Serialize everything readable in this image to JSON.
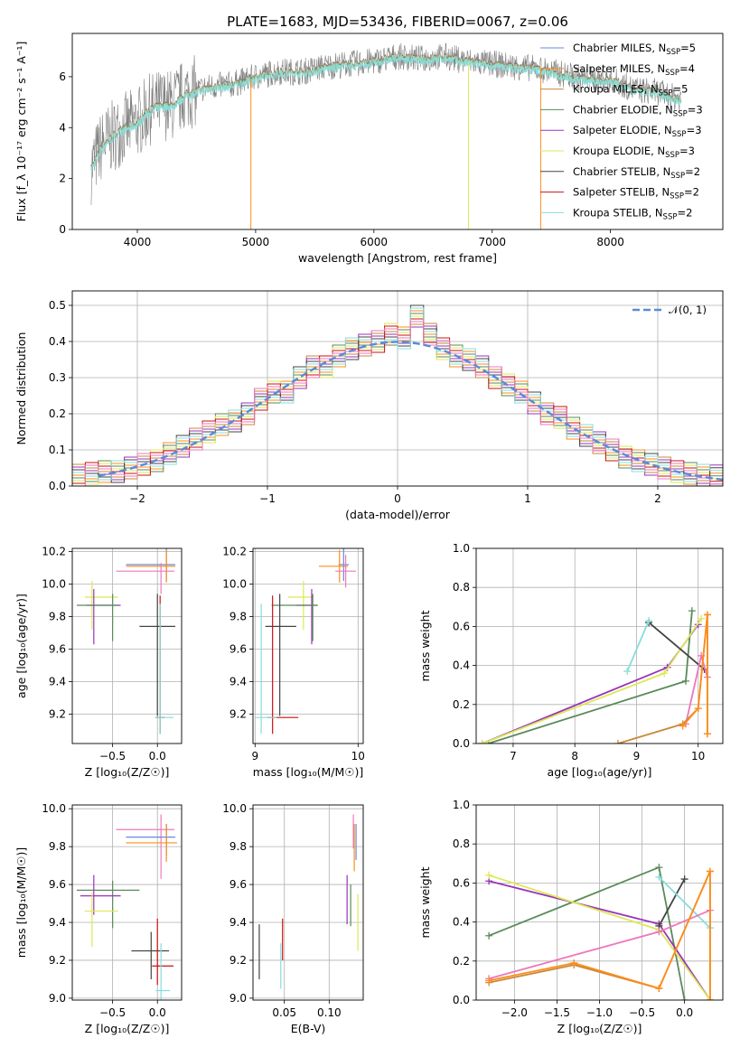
{
  "figure_title": "PLATE=1683, MJD=53436, FIBERID=0067, z=0.06",
  "colors": {
    "Chabrier MILES": "#6688dd",
    "Salpeter MILES": "#ff8c1a",
    "Kroupa MILES": "#c88a3a",
    "Chabrier ELODIE": "#5a8a5a",
    "Salpeter ELODIE": "#9933bb",
    "Kroupa ELODIE": "#dde855",
    "Chabrier STELIB": "#444444",
    "Salpeter STELIB": "#cc1111",
    "Kroupa STELIB": "#88dddd",
    "Pink": "#ee77bb",
    "Data": "#7f7f7f"
  },
  "chart_data": [
    {
      "id": "spectrum",
      "type": "line",
      "title": "PLATE=1683, MJD=53436, FIBERID=0067, z=0.06",
      "xlabel": "wavelength [Angstrom, rest frame]",
      "ylabel": "Flux [f_λ 10⁻¹⁷ erg cm⁻² s⁻¹ A⁻¹]",
      "xlim": [
        3450,
        8950
      ],
      "ylim": [
        0,
        7.7
      ],
      "xticks": [
        "4000",
        "5000",
        "6000",
        "7000",
        "8000"
      ],
      "yticks": [
        "0",
        "2",
        "4",
        "6"
      ],
      "grid": false,
      "legend_position": "right",
      "legend": [
        {
          "label": "Chabrier MILES, N",
          "sub": "SSP",
          "suffix": "=5"
        },
        {
          "label": "Salpeter MILES, N",
          "sub": "SSP",
          "suffix": "=4"
        },
        {
          "label": "Kroupa MILES, N",
          "sub": "SSP",
          "suffix": "=5"
        },
        {
          "label": "Chabrier ELODIE, N",
          "sub": "SSP",
          "suffix": "=3"
        },
        {
          "label": "Salpeter ELODIE, N",
          "sub": "SSP",
          "suffix": "=3"
        },
        {
          "label": "Kroupa ELODIE, N",
          "sub": "SSP",
          "suffix": "=3"
        },
        {
          "label": "Chabrier STELIB, N",
          "sub": "SSP",
          "suffix": "=2"
        },
        {
          "label": "Salpeter STELIB, N",
          "sub": "SSP",
          "suffix": "=2"
        },
        {
          "label": "Kroupa STELIB, N",
          "sub": "SSP",
          "suffix": "=2"
        }
      ],
      "continuum": [
        [
          3600,
          2.3
        ],
        [
          3700,
          3.3
        ],
        [
          3800,
          3.7
        ],
        [
          3900,
          4.0
        ],
        [
          4000,
          4.2
        ],
        [
          4100,
          4.7
        ],
        [
          4200,
          4.9
        ],
        [
          4300,
          4.9
        ],
        [
          4400,
          5.3
        ],
        [
          4600,
          5.6
        ],
        [
          4800,
          5.7
        ],
        [
          5000,
          6.0
        ],
        [
          5200,
          6.2
        ],
        [
          5400,
          6.2
        ],
        [
          5600,
          6.4
        ],
        [
          5800,
          6.5
        ],
        [
          6000,
          6.6
        ],
        [
          6200,
          6.8
        ],
        [
          6400,
          6.7
        ],
        [
          6600,
          6.8
        ],
        [
          6800,
          6.6
        ],
        [
          7000,
          6.5
        ],
        [
          7200,
          6.4
        ],
        [
          7400,
          6.3
        ],
        [
          7600,
          6.1
        ],
        [
          7800,
          5.9
        ],
        [
          8000,
          5.9
        ],
        [
          8200,
          5.5
        ],
        [
          8400,
          5.4
        ],
        [
          8600,
          5.1
        ]
      ]
    },
    {
      "id": "residuals",
      "type": "histogram",
      "xlabel": "(data-model)/error",
      "ylabel": "Normed distribution",
      "xlim": [
        -2.5,
        2.5
      ],
      "ylim": [
        0,
        0.54
      ],
      "xticks": [
        "−2",
        "−1",
        "0",
        "1",
        "2"
      ],
      "yticks": [
        "0.0",
        "0.1",
        "0.2",
        "0.3",
        "0.4",
        "0.5"
      ],
      "grid": true,
      "legend_position": "top-right",
      "legend": "𝒩(0, 1)",
      "bin_width": 0.1,
      "bin_centers": [
        -2.45,
        -2.35,
        -2.25,
        -2.15,
        -2.05,
        -1.95,
        -1.85,
        -1.75,
        -1.65,
        -1.55,
        -1.45,
        -1.35,
        -1.25,
        -1.15,
        -1.05,
        -0.95,
        -0.85,
        -0.75,
        -0.65,
        -0.55,
        -0.45,
        -0.35,
        -0.25,
        -0.15,
        -0.05,
        0.05,
        0.15,
        0.25,
        0.35,
        0.45,
        0.55,
        0.65,
        0.75,
        0.85,
        0.95,
        1.05,
        1.15,
        1.25,
        1.35,
        1.45,
        1.55,
        1.65,
        1.75,
        1.85,
        1.95,
        2.05,
        2.15,
        2.25,
        2.35,
        2.45
      ],
      "values": [
        0.03,
        0.035,
        0.04,
        0.04,
        0.05,
        0.06,
        0.07,
        0.09,
        0.11,
        0.13,
        0.15,
        0.17,
        0.18,
        0.2,
        0.24,
        0.26,
        0.26,
        0.3,
        0.33,
        0.33,
        0.36,
        0.38,
        0.39,
        0.4,
        0.42,
        0.41,
        0.47,
        0.42,
        0.38,
        0.36,
        0.35,
        0.33,
        0.3,
        0.28,
        0.26,
        0.23,
        0.2,
        0.19,
        0.16,
        0.14,
        0.12,
        0.1,
        0.08,
        0.07,
        0.06,
        0.05,
        0.04,
        0.035,
        0.03,
        0.028
      ],
      "gaussian": {
        "mu": 0,
        "sigma": 1
      }
    },
    {
      "id": "age-vs-Z",
      "type": "scatter",
      "xlabel": "Z [log₁₀(Z/Z☉)]",
      "ylabel": "age  [log₁₀(age/yr)]",
      "xlim": [
        -0.95,
        0.27
      ],
      "ylim": [
        9.02,
        10.22
      ],
      "xticks": [
        "−0.5",
        "0.0"
      ],
      "yticks": [
        "9.2",
        "9.4",
        "9.6",
        "9.8",
        "10.0",
        "10.2"
      ],
      "grid": true,
      "points": [
        {
          "series": "Chabrier MILES",
          "x": 0.1,
          "xerr": [
            0.45,
            0.1
          ],
          "y": 10.12,
          "yerr": [
            0.1,
            0.1
          ]
        },
        {
          "series": "Salpeter MILES",
          "x": 0.1,
          "xerr": [
            0.45,
            0.1
          ],
          "y": 10.11,
          "yerr": [
            0.1,
            0.1
          ]
        },
        {
          "series": "Pink",
          "x": 0.04,
          "xerr": [
            0.5,
            0.15
          ],
          "y": 10.08,
          "yerr": [
            0.14,
            0.05
          ]
        },
        {
          "series": "Kroupa ELODIE",
          "x": -0.73,
          "xerr": [
            0.08,
            0.29
          ],
          "y": 9.92,
          "yerr": [
            0.2,
            0.1
          ]
        },
        {
          "series": "Salpeter ELODIE",
          "x": -0.71,
          "xerr": [
            0.08,
            0.3
          ],
          "y": 9.87,
          "yerr": [
            0.24,
            0.1
          ]
        },
        {
          "series": "Chabrier ELODIE",
          "x": -0.5,
          "xerr": [
            0.4,
            0.05
          ],
          "y": 9.87,
          "yerr": [
            0.22,
            0.07
          ]
        },
        {
          "series": "Chabrier STELIB",
          "x": 0.0,
          "xerr": [
            0.2,
            0.2
          ],
          "y": 9.74,
          "yerr": [
            0.55,
            0.2
          ]
        },
        {
          "series": "Salpeter STELIB",
          "x": 0.03,
          "xerr": [
            0.05,
            0.05
          ],
          "y": 9.18,
          "yerr": [
            0.1,
            0.75
          ]
        },
        {
          "series": "Kroupa STELIB",
          "x": 0.03,
          "xerr": [
            0.05,
            0.15
          ],
          "y": 9.18,
          "yerr": [
            0.1,
            0.7
          ]
        }
      ]
    },
    {
      "id": "age-vs-mass",
      "type": "scatter",
      "xlabel": "mass [log₁₀(M/M☉)]",
      "ylabel": "",
      "xlim": [
        8.98,
        10.05
      ],
      "ylim": [
        9.02,
        10.22
      ],
      "xticks": [
        "9",
        "10"
      ],
      "yticks": [
        "9.2",
        "9.4",
        "9.6",
        "9.8",
        "10.0",
        "10.2"
      ],
      "grid": true,
      "points": [
        {
          "series": "Chabrier MILES",
          "x": 9.86,
          "xerr": [
            0.05,
            0.05
          ],
          "y": 10.12,
          "yerr": [
            0.1,
            0.1
          ]
        },
        {
          "series": "Salpeter MILES",
          "x": 9.82,
          "xerr": [
            0.2,
            0.08
          ],
          "y": 10.11,
          "yerr": [
            0.1,
            0.1
          ]
        },
        {
          "series": "Pink",
          "x": 9.88,
          "xerr": [
            0.1,
            0.1
          ],
          "y": 10.08,
          "yerr": [
            0.1,
            0.1
          ]
        },
        {
          "series": "Kroupa ELODIE",
          "x": 9.47,
          "xerr": [
            0.15,
            0.1
          ],
          "y": 9.92,
          "yerr": [
            0.2,
            0.1
          ]
        },
        {
          "series": "Salpeter ELODIE",
          "x": 9.55,
          "xerr": [
            0.15,
            0.05
          ],
          "y": 9.87,
          "yerr": [
            0.24,
            0.1
          ]
        },
        {
          "series": "Chabrier ELODIE",
          "x": 9.56,
          "xerr": [
            0.4,
            0.05
          ],
          "y": 9.87,
          "yerr": [
            0.22,
            0.07
          ]
        },
        {
          "series": "Chabrier STELIB",
          "x": 9.24,
          "xerr": [
            0.14,
            0.16
          ],
          "y": 9.74,
          "yerr": [
            0.55,
            0.2
          ]
        },
        {
          "series": "Salpeter STELIB",
          "x": 9.17,
          "xerr": [
            0.05,
            0.25
          ],
          "y": 9.18,
          "yerr": [
            0.1,
            0.75
          ]
        },
        {
          "series": "Kroupa STELIB",
          "x": 9.06,
          "xerr": [
            0.06,
            0.15
          ],
          "y": 9.18,
          "yerr": [
            0.1,
            0.7
          ]
        }
      ]
    },
    {
      "id": "mass-weight-vs-age",
      "type": "line",
      "xlabel": "age  [log₁₀(age/yr)]",
      "ylabel": "mass weight",
      "xlim": [
        6.4,
        10.4
      ],
      "ylim": [
        0,
        1
      ],
      "xticks": [
        "7",
        "8",
        "9",
        "10"
      ],
      "yticks": [
        "0.0",
        "0.2",
        "0.4",
        "0.6",
        "0.8",
        "1.0"
      ],
      "grid": true,
      "series": [
        {
          "name": "Chabrier ELODIE",
          "x": [
            6.6,
            9.8,
            9.9
          ],
          "y": [
            0.0,
            0.32,
            0.68
          ]
        },
        {
          "name": "Salpeter ELODIE",
          "x": [
            6.5,
            9.5,
            10.0
          ],
          "y": [
            0.0,
            0.39,
            0.61
          ]
        },
        {
          "name": "Kroupa ELODIE",
          "x": [
            6.5,
            9.45,
            10.05
          ],
          "y": [
            0.0,
            0.36,
            0.64
          ]
        },
        {
          "name": "Chabrier STELIB",
          "x": [
            9.2,
            10.1
          ],
          "y": [
            0.62,
            0.38
          ]
        },
        {
          "name": "Kroupa STELIB",
          "x": [
            8.85,
            9.2
          ],
          "y": [
            0.37,
            0.63
          ]
        },
        {
          "name": "Pink",
          "x": [
            9.8,
            10.05,
            10.15
          ],
          "y": [
            0.1,
            0.45,
            0.34
          ]
        },
        {
          "name": "Kroupa MILES",
          "x": [
            8.7,
            9.75,
            10.0,
            10.15,
            10.15
          ],
          "y": [
            0.0,
            0.1,
            0.18,
            0.66,
            0.05
          ]
        },
        {
          "name": "Salpeter MILES",
          "x": [
            9.75,
            10.0,
            10.15,
            10.15
          ],
          "y": [
            0.09,
            0.18,
            0.66,
            0.05
          ]
        }
      ]
    },
    {
      "id": "mass-vs-Z",
      "type": "scatter",
      "xlabel": "Z [log₁₀(Z/Z☉)]",
      "ylabel": "mass [log₁₀(M/M☉)]",
      "xlim": [
        -0.95,
        0.27
      ],
      "ylim": [
        8.99,
        10.02
      ],
      "xticks": [
        "−0.5",
        "0.0"
      ],
      "yticks": [
        "9.0",
        "9.2",
        "9.4",
        "9.6",
        "9.8",
        "10.0"
      ],
      "grid": true,
      "points": [
        {
          "series": "Pink",
          "x": 0.04,
          "xerr": [
            0.5,
            0.15
          ],
          "y": 9.89,
          "yerr": [
            0.26,
            0.08
          ]
        },
        {
          "series": "Chabrier MILES",
          "x": 0.1,
          "xerr": [
            0.45,
            0.1
          ],
          "y": 9.85,
          "yerr": [
            0.1,
            0.07
          ]
        },
        {
          "series": "Salpeter MILES",
          "x": 0.1,
          "xerr": [
            0.45,
            0.12
          ],
          "y": 9.82,
          "yerr": [
            0.1,
            0.1
          ]
        },
        {
          "series": "Chabrier ELODIE",
          "x": -0.5,
          "xerr": [
            0.4,
            0.3
          ],
          "y": 9.57,
          "yerr": [
            0.2,
            0.05
          ]
        },
        {
          "series": "Salpeter ELODIE",
          "x": -0.71,
          "xerr": [
            0.15,
            0.3
          ],
          "y": 9.54,
          "yerr": [
            0.1,
            0.11
          ]
        },
        {
          "series": "Kroupa ELODIE",
          "x": -0.73,
          "xerr": [
            0.08,
            0.29
          ],
          "y": 9.46,
          "yerr": [
            0.19,
            0.1
          ]
        },
        {
          "series": "Chabrier STELIB",
          "x": -0.07,
          "xerr": [
            0.22,
            0.2
          ],
          "y": 9.25,
          "yerr": [
            0.15,
            0.1
          ]
        },
        {
          "series": "Salpeter STELIB",
          "x": 0.0,
          "xerr": [
            0.06,
            0.18
          ],
          "y": 9.17,
          "yerr": [
            0.1,
            0.25
          ]
        },
        {
          "series": "Kroupa STELIB",
          "x": 0.04,
          "xerr": [
            0.06,
            0.1
          ],
          "y": 9.04,
          "yerr": [
            0.05,
            0.25
          ]
        }
      ]
    },
    {
      "id": "mass-vs-ebv",
      "type": "scatter",
      "xlabel": "E(B-V)",
      "ylabel": "",
      "xlim": [
        0.015,
        0.138
      ],
      "ylim": [
        8.99,
        10.02
      ],
      "xticks": [
        "0.05",
        "0.10"
      ],
      "yticks": [
        "9.0",
        "9.2",
        "9.4",
        "9.6",
        "9.8",
        "10.0"
      ],
      "grid": true,
      "points": [
        {
          "series": "Pink",
          "x": 0.127,
          "y": 9.89,
          "yerr": [
            0.1,
            0.08
          ]
        },
        {
          "series": "Chabrier MILES",
          "x": 0.13,
          "y": 9.85,
          "yerr": [
            0.12,
            0.07
          ]
        },
        {
          "series": "Salpeter MILES",
          "x": 0.128,
          "y": 9.82,
          "yerr": [
            0.15,
            0.1
          ]
        },
        {
          "series": "Salpeter ELODIE",
          "x": 0.12,
          "y": 9.54,
          "yerr": [
            0.15,
            0.11
          ]
        },
        {
          "series": "Chabrier ELODIE",
          "x": 0.124,
          "y": 9.5,
          "yerr": [
            0.12,
            0.1
          ]
        },
        {
          "series": "Kroupa ELODIE",
          "x": 0.132,
          "y": 9.4,
          "yerr": [
            0.15,
            0.15
          ]
        },
        {
          "series": "Chabrier STELIB",
          "x": 0.022,
          "y": 9.25,
          "yerr": [
            0.15,
            0.14
          ]
        },
        {
          "series": "Salpeter STELIB",
          "x": 0.048,
          "y": 9.3,
          "yerr": [
            0.1,
            0.12
          ]
        },
        {
          "series": "Kroupa STELIB",
          "x": 0.046,
          "y": 9.15,
          "yerr": [
            0.1,
            0.14
          ]
        }
      ]
    },
    {
      "id": "mass-weight-vs-Z",
      "type": "line",
      "xlabel": "Z [log₁₀(Z/Z☉)]",
      "ylabel": "mass weight",
      "xlim": [
        -2.45,
        0.45
      ],
      "ylim": [
        0,
        1
      ],
      "xticks": [
        "−2.0",
        "−1.5",
        "−1.0",
        "−0.5",
        "0.0"
      ],
      "yticks": [
        "0.0",
        "0.2",
        "0.4",
        "0.6",
        "0.8",
        "1.0"
      ],
      "grid": true,
      "series": [
        {
          "name": "Chabrier ELODIE",
          "x": [
            -2.3,
            -0.3,
            0.0
          ],
          "y": [
            0.33,
            0.68,
            0.0
          ]
        },
        {
          "name": "Salpeter ELODIE",
          "x": [
            -2.3,
            -0.3,
            0.3
          ],
          "y": [
            0.61,
            0.39,
            0.0
          ]
        },
        {
          "name": "Kroupa ELODIE",
          "x": [
            -2.3,
            -0.3,
            0.3
          ],
          "y": [
            0.64,
            0.36,
            0.0
          ]
        },
        {
          "name": "Chabrier STELIB",
          "x": [
            -0.3,
            0.0
          ],
          "y": [
            0.38,
            0.62
          ]
        },
        {
          "name": "Kroupa STELIB",
          "x": [
            -0.3,
            0.3
          ],
          "y": [
            0.63,
            0.37
          ]
        },
        {
          "name": "Pink",
          "x": [
            -2.3,
            -0.3,
            0.3
          ],
          "y": [
            0.11,
            0.35,
            0.46
          ]
        },
        {
          "name": "Kroupa MILES",
          "x": [
            -2.3,
            -1.3,
            -0.3,
            0.3,
            0.3
          ],
          "y": [
            0.09,
            0.18,
            0.06,
            0.66,
            0.0
          ]
        },
        {
          "name": "Salpeter MILES",
          "x": [
            -2.3,
            -1.3,
            -0.3,
            0.3,
            0.3
          ],
          "y": [
            0.1,
            0.19,
            0.06,
            0.66,
            0.0
          ]
        }
      ]
    }
  ]
}
